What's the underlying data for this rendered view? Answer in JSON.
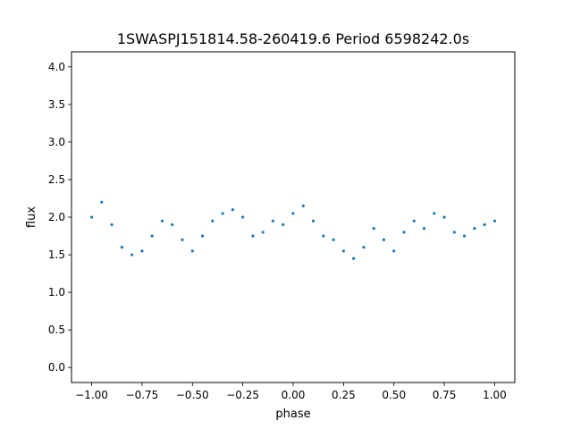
{
  "chart_data": {
    "type": "scatter",
    "title": "1SWASPJ151814.58-260419.6 Period 6598242.0s",
    "xlabel": "phase",
    "ylabel": "flux",
    "xlim": [
      -1.1,
      1.1
    ],
    "ylim": [
      -0.2,
      4.2
    ],
    "xticks": [
      -1.0,
      -0.75,
      -0.5,
      -0.25,
      0.0,
      0.25,
      0.5,
      0.75,
      1.0
    ],
    "xtick_labels": [
      "−1.00",
      "−0.75",
      "−0.50",
      "−0.25",
      "0.00",
      "0.25",
      "0.50",
      "0.75",
      "1.00"
    ],
    "yticks": [
      0.0,
      0.5,
      1.0,
      1.5,
      2.0,
      2.5,
      3.0,
      3.5,
      4.0
    ],
    "ytick_labels": [
      "0.0",
      "0.5",
      "1.0",
      "1.5",
      "2.0",
      "2.5",
      "3.0",
      "3.5",
      "4.0"
    ],
    "grid": false,
    "legend": "none",
    "marker_color": "#1f77b4",
    "series": [
      {
        "x": [
          -1.0,
          -0.95,
          -0.9,
          -0.85,
          -0.8,
          -0.75,
          -0.7,
          -0.65,
          -0.6,
          -0.55,
          -0.5,
          -0.45,
          -0.4,
          -0.35,
          -0.3,
          -0.25,
          -0.2,
          -0.15,
          -0.1,
          -0.05,
          0.0,
          0.05,
          0.1,
          0.15,
          0.2,
          0.25,
          0.3,
          0.35,
          0.4,
          0.45,
          0.5,
          0.55,
          0.6,
          0.65,
          0.7,
          0.75,
          0.8,
          0.85,
          0.9,
          0.95,
          1.0
        ],
        "y": [
          2.0,
          2.2,
          1.9,
          1.6,
          1.5,
          1.55,
          1.75,
          1.95,
          1.9,
          1.7,
          1.55,
          1.75,
          1.95,
          2.05,
          2.1,
          2.0,
          1.75,
          1.8,
          1.95,
          1.9,
          2.05,
          2.15,
          1.95,
          1.75,
          1.7,
          1.55,
          1.45,
          1.6,
          1.85,
          1.7,
          1.55,
          1.8,
          1.95,
          1.85,
          2.05,
          2.0,
          1.8,
          1.75,
          1.85,
          1.9,
          1.95
        ]
      }
    ]
  }
}
